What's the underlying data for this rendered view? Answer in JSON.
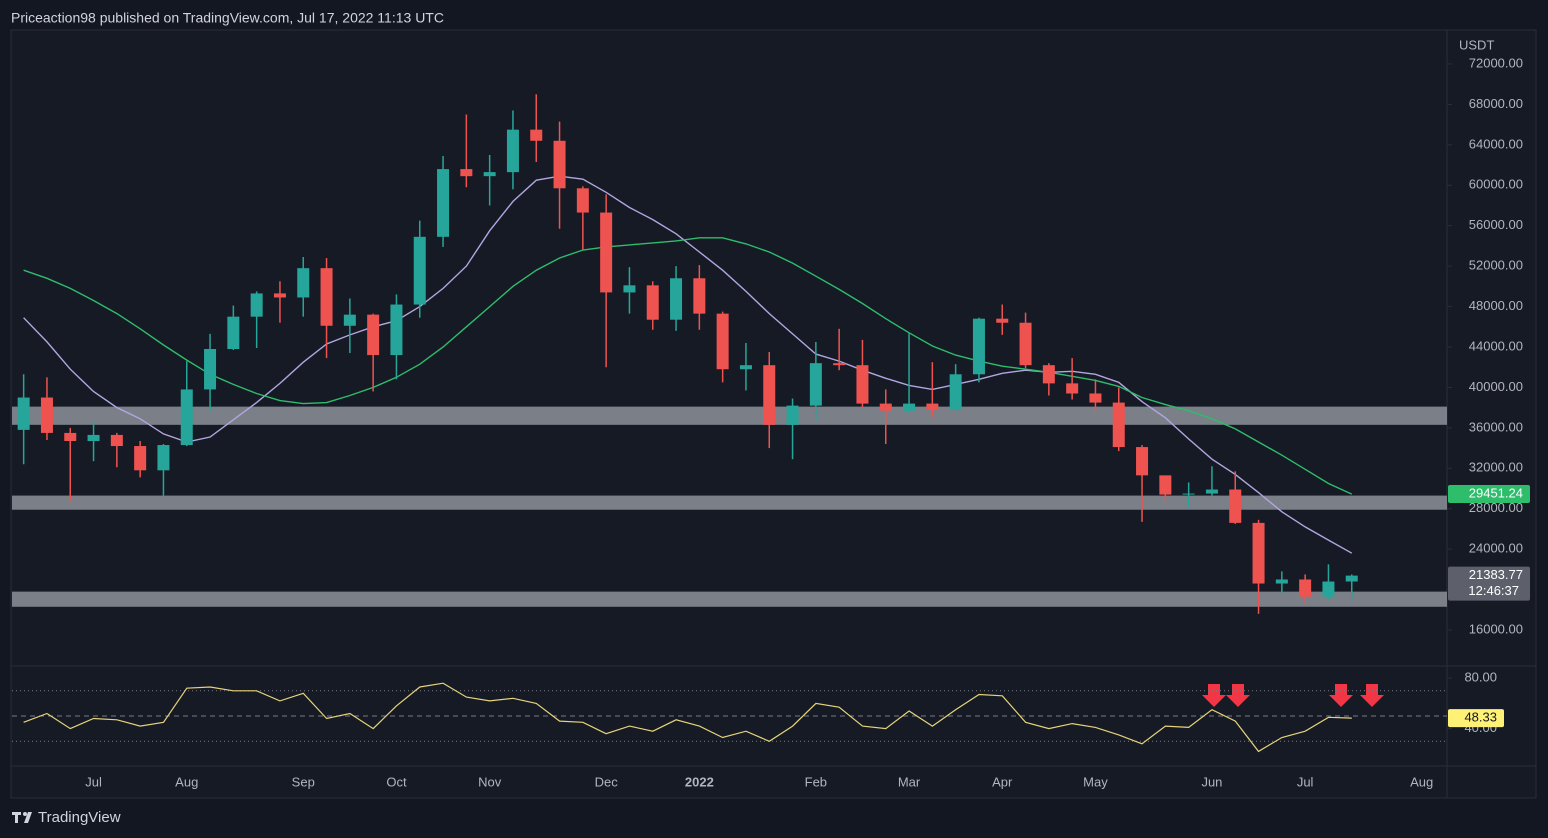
{
  "header": {
    "text": "Priceaction98 published on TradingView.com, Jul 17, 2022 11:13 UTC"
  },
  "footer": {
    "brand": "TradingView"
  },
  "chart_data": [
    {
      "type": "candlestick",
      "unit": "USDT",
      "categories": [
        null,
        null,
        null,
        "Jul",
        null,
        null,
        null,
        "Aug",
        null,
        null,
        null,
        null,
        "Sep",
        null,
        null,
        null,
        "Oct",
        null,
        null,
        null,
        "Nov",
        null,
        null,
        null,
        null,
        "Dec",
        null,
        null,
        null,
        "2022",
        null,
        null,
        null,
        null,
        "Feb",
        null,
        null,
        null,
        "Mar",
        null,
        null,
        null,
        "Apr",
        null,
        null,
        null,
        "May",
        null,
        null,
        null,
        null,
        "Jun",
        null,
        null,
        null,
        "Jul",
        null,
        null,
        null,
        null,
        "Aug"
      ],
      "open": [
        35800,
        39000,
        35500,
        34700,
        35300,
        34200,
        31800,
        34300,
        39800,
        43800,
        47000,
        49300,
        48900,
        51800,
        46100,
        47200,
        43200,
        48200,
        54900,
        61600,
        60900,
        61300,
        65500,
        64400,
        59700,
        57300,
        49400,
        50100,
        46700,
        50800,
        47300,
        41800,
        42200,
        36300,
        38200,
        42400,
        42200,
        38400,
        37700,
        38400,
        37800,
        41300,
        46800,
        46400,
        42200,
        40400,
        39400,
        38500,
        34100,
        31300,
        29400,
        29500,
        29900,
        26600,
        20600,
        21000,
        19300,
        20800,
        null,
        null,
        null
      ],
      "high": [
        41300,
        41000,
        36000,
        36600,
        35500,
        34700,
        34400,
        42600,
        45300,
        48100,
        49500,
        50500,
        52900,
        52800,
        48800,
        47300,
        49200,
        56500,
        62900,
        67000,
        63000,
        67400,
        69000,
        66300,
        59900,
        59100,
        51900,
        50500,
        52000,
        52100,
        47500,
        44400,
        43500,
        38900,
        44500,
        45800,
        44700,
        39800,
        45400,
        42500,
        42300,
        46900,
        48200,
        47400,
        42400,
        42900,
        40800,
        40000,
        34300,
        31300,
        30600,
        32200,
        31700,
        26900,
        21800,
        21500,
        22500,
        21500,
        null,
        null,
        null
      ],
      "low": [
        32400,
        34800,
        28800,
        32700,
        32100,
        31100,
        29300,
        34200,
        37600,
        43700,
        43900,
        46400,
        47000,
        42900,
        43400,
        39600,
        40800,
        46900,
        53900,
        59800,
        58000,
        59600,
        62300,
        55700,
        53600,
        42000,
        47300,
        45700,
        45600,
        45700,
        40500,
        39700,
        34000,
        32900,
        36700,
        41700,
        38000,
        34400,
        37500,
        37100,
        37600,
        40500,
        45200,
        41900,
        39200,
        38800,
        37600,
        33700,
        26700,
        28700,
        28100,
        29300,
        26500,
        17600,
        19600,
        18600,
        19000,
        18900,
        null,
        null,
        null
      ],
      "close": [
        39000,
        35500,
        34700,
        35300,
        34200,
        31800,
        34300,
        39800,
        43800,
        47000,
        49300,
        48900,
        51800,
        46100,
        47200,
        43200,
        48200,
        54900,
        61600,
        60900,
        61300,
        65500,
        64400,
        59700,
        57300,
        49400,
        50100,
        46700,
        50800,
        47300,
        41800,
        42200,
        36300,
        38200,
        42400,
        42200,
        38400,
        37700,
        38400,
        37800,
        41300,
        46800,
        46400,
        42200,
        40400,
        39400,
        38500,
        34100,
        31300,
        29400,
        29500,
        29900,
        26600,
        20600,
        21000,
        19300,
        20800,
        21383.77,
        null,
        null,
        null
      ],
      "up_color": "#26a69a",
      "down_color": "#ef5350",
      "series": [
        {
          "color": "#b2a6e0",
          "values": [
            46900,
            44500,
            41800,
            39600,
            38000,
            36900,
            35400,
            34600,
            35100,
            36800,
            38500,
            40400,
            42500,
            44300,
            45200,
            46000,
            46600,
            48000,
            49800,
            52000,
            55500,
            58400,
            60500,
            60900,
            60600,
            59300,
            57800,
            56600,
            55200,
            53400,
            51600,
            49500,
            47300,
            45300,
            43300,
            42600,
            41700,
            40900,
            40200,
            39800,
            40300,
            40800,
            41400,
            41700,
            41500,
            41600,
            41300,
            40500,
            38600,
            37000,
            34900,
            32900,
            31400,
            29600,
            27700,
            26200,
            24900,
            23600,
            null,
            null,
            null
          ]
        },
        {
          "color": "#2ebd6b",
          "values": [
            51600,
            50800,
            49800,
            48600,
            47300,
            45800,
            44200,
            42700,
            41300,
            40300,
            39400,
            38700,
            38400,
            38500,
            39200,
            40000,
            41000,
            42300,
            44000,
            46000,
            48000,
            50000,
            51600,
            52800,
            53600,
            53900,
            54100,
            54300,
            54500,
            54800,
            54800,
            54200,
            53400,
            52300,
            51000,
            49700,
            48300,
            46800,
            45400,
            44100,
            43200,
            42600,
            42100,
            41800,
            41500,
            41100,
            40700,
            40100,
            39000,
            38300,
            37700,
            36900,
            35900,
            34600,
            33300,
            31900,
            30500,
            29451.24,
            null,
            null,
            null
          ]
        }
      ],
      "zones": [
        {
          "from": 36300,
          "to": 38100,
          "color": "#9598a1"
        },
        {
          "from": 27900,
          "to": 29300,
          "color": "#9598a1"
        },
        {
          "from": 18300,
          "to": 19800,
          "color": "#9598a1"
        }
      ],
      "ylim": [
        12540,
        75360
      ],
      "yticks": [
        {
          "value": 16000,
          "label": "16000.00"
        },
        {
          "value": 20000,
          "label": "20000.00"
        },
        {
          "value": 24000,
          "label": "24000.00"
        },
        {
          "value": 28000,
          "label": "28000.00"
        },
        {
          "value": 32000,
          "label": "32000.00"
        },
        {
          "value": 36000,
          "label": "36000.00"
        },
        {
          "value": 40000,
          "label": "40000.00"
        },
        {
          "value": 44000,
          "label": "44000.00"
        },
        {
          "value": 48000,
          "label": "48000.00"
        },
        {
          "value": 52000,
          "label": "52000.00"
        },
        {
          "value": 56000,
          "label": "56000.00"
        },
        {
          "value": 60000,
          "label": "60000.00"
        },
        {
          "value": 64000,
          "label": "64000.00"
        },
        {
          "value": 68000,
          "label": "68000.00"
        },
        {
          "value": 72000,
          "label": "72000.00"
        }
      ],
      "countdown": "12:46:37",
      "grid": false
    },
    {
      "type": "line",
      "color": "#e6d37a",
      "values": [
        45,
        52,
        40,
        48,
        47,
        42,
        45,
        72,
        73,
        70,
        70,
        62,
        68,
        48,
        52,
        40,
        58,
        73,
        76,
        65,
        62,
        64,
        60,
        46,
        45,
        36,
        42,
        38,
        47,
        42,
        33,
        38,
        30,
        42,
        60,
        57,
        42,
        40,
        54,
        42,
        55,
        67,
        66,
        45,
        40,
        44,
        41,
        35,
        28,
        42,
        41,
        55,
        46,
        22,
        33,
        38,
        49,
        48.33,
        null,
        null,
        null
      ],
      "ylim": [
        11.2,
        89.6
      ],
      "yticks": [
        {
          "value": 80,
          "label": "80.00"
        },
        {
          "value": 40,
          "label": "40.00"
        }
      ],
      "levels": [
        70,
        50,
        30
      ]
    }
  ]
}
